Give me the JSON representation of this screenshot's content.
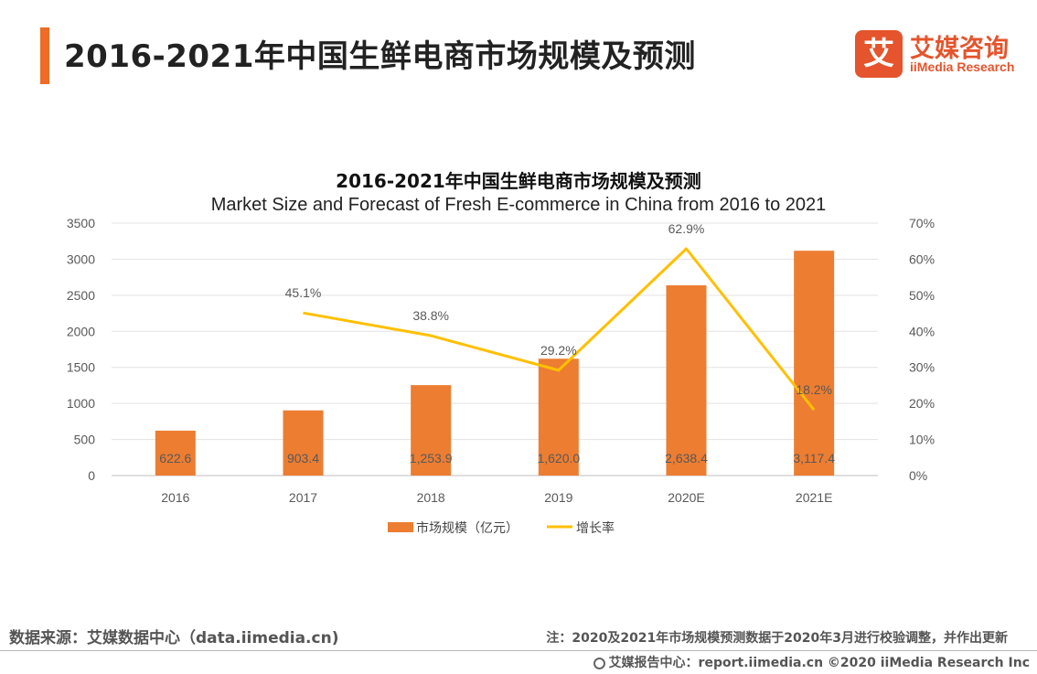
{
  "header": {
    "title": "2016-2021年中国生鲜电商市场规模及预测",
    "logo_mark": "艾",
    "logo_cn": "艾媒咨询",
    "logo_en": "iiMedia Research"
  },
  "chart_data": {
    "type": "bar",
    "title": "2016-2021年中国生鲜电商市场规模及预测",
    "subtitle": "Market Size and Forecast of Fresh E-commerce  in China from 2016 to 2021",
    "categories": [
      "2016",
      "2017",
      "2018",
      "2019",
      "2020E",
      "2021E"
    ],
    "series": [
      {
        "name": "市场规模（亿元）",
        "type": "bar",
        "axis": "left",
        "color": "#ed7d31",
        "values": [
          622.6,
          903.4,
          1253.9,
          1620.0,
          2638.4,
          3117.4
        ],
        "labels": [
          "622.6",
          "903.4",
          "1,253.9",
          "1,620.0",
          "2,638.4",
          "3,117.4"
        ]
      },
      {
        "name": "增长率",
        "type": "line",
        "axis": "right",
        "color": "#ffc000",
        "values": [
          null,
          45.1,
          38.8,
          29.2,
          62.9,
          18.2
        ],
        "labels": [
          "",
          "45.1%",
          "38.8%",
          "29.2%",
          "62.9%",
          "18.2%"
        ]
      }
    ],
    "y_left": {
      "min": 0,
      "max": 3500,
      "ticks": [
        "0",
        "500",
        "1000",
        "1500",
        "2000",
        "2500",
        "3000",
        "3500"
      ]
    },
    "y_right": {
      "min": 0,
      "max": 70,
      "ticks": [
        "0%",
        "10%",
        "20%",
        "30%",
        "40%",
        "50%",
        "60%",
        "70%"
      ]
    },
    "grid": true,
    "legend_position": "bottom"
  },
  "footer": {
    "source": "数据来源：艾媒数据中心（data.iimedia.cn)",
    "note": "注：2020及2021年市场规模预测数据于2020年3月进行校验调整，并作出更新",
    "credit": "艾媒报告中心：report.iimedia.cn  ©2020  iiMedia Research  Inc"
  }
}
